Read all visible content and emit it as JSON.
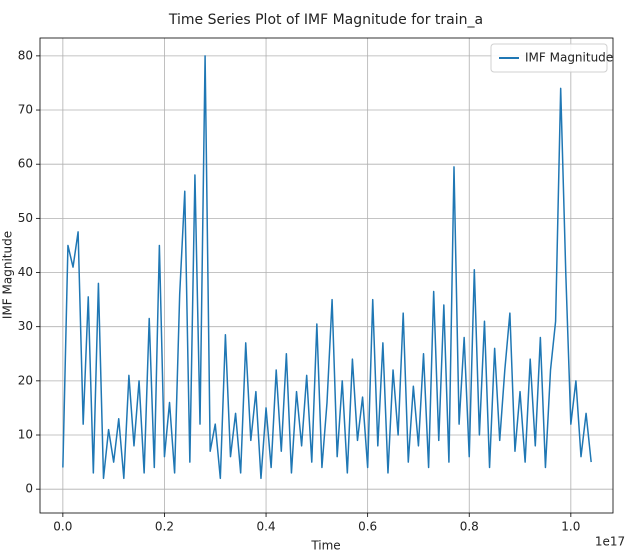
{
  "chart_data": {
    "type": "line",
    "title": "Time Series Plot of IMF Magnitude for train_a",
    "x_label": "Time",
    "y_label": "IMF Magnitude",
    "x_offset_label": "1e17",
    "x": [
      0,
      0.01,
      0.02,
      0.03,
      0.04,
      0.05,
      0.06,
      0.07,
      0.08,
      0.09,
      0.1,
      0.11,
      0.12,
      0.13,
      0.14,
      0.15,
      0.16,
      0.17,
      0.18,
      0.19,
      0.2,
      0.21,
      0.22,
      0.23,
      0.24,
      0.25,
      0.26,
      0.27,
      0.28,
      0.29,
      0.3,
      0.31,
      0.32,
      0.33,
      0.34,
      0.35,
      0.36,
      0.37,
      0.38,
      0.39,
      0.4,
      0.41,
      0.42,
      0.43,
      0.44,
      0.45,
      0.46,
      0.47,
      0.48,
      0.49,
      0.5,
      0.51,
      0.52,
      0.53,
      0.54,
      0.55,
      0.56,
      0.57,
      0.58,
      0.59,
      0.6,
      0.61,
      0.62,
      0.63,
      0.64,
      0.65,
      0.66,
      0.67,
      0.68,
      0.69,
      0.7,
      0.71,
      0.72,
      0.73,
      0.74,
      0.75,
      0.76,
      0.77,
      0.78,
      0.79,
      0.8,
      0.81,
      0.82,
      0.83,
      0.84,
      0.85,
      0.86,
      0.87,
      0.88,
      0.89,
      0.9,
      0.91,
      0.92,
      0.93,
      0.94,
      0.95,
      0.96,
      0.97,
      0.98,
      0.99,
      1,
      1.01,
      1.02,
      1.03,
      1.04
    ],
    "series": [
      {
        "name": "IMF Magnitude",
        "color": "#1f77b4",
        "values": [
          4,
          45,
          41,
          47.5,
          12,
          35.5,
          3,
          38,
          2,
          11,
          5,
          13,
          2,
          21,
          8,
          20,
          3,
          31.5,
          4,
          45,
          6,
          16,
          3,
          36,
          55,
          5,
          58,
          12,
          80,
          7,
          12,
          2,
          28.5,
          6,
          14,
          3,
          27,
          9,
          18,
          2,
          15,
          4,
          22,
          7,
          25,
          3,
          18,
          8,
          21,
          5,
          30.5,
          4,
          16,
          35,
          6,
          20,
          3,
          24,
          9,
          17,
          4,
          35,
          8,
          27,
          3,
          22,
          10,
          32.5,
          5,
          19,
          8,
          25,
          4,
          36.5,
          9,
          34,
          5,
          59.5,
          12,
          28,
          6,
          40.5,
          10,
          31,
          4,
          26,
          9,
          22,
          32.5,
          7,
          18,
          5,
          24,
          8,
          28,
          4,
          22,
          31,
          74,
          40,
          12,
          20,
          6,
          14,
          5
        ]
      }
    ],
    "xlim": [
      -0.045,
      1.083
    ],
    "ylim": [
      -4.4,
      83.3
    ],
    "xticks": [
      {
        "value": 0,
        "label": "0.0"
      },
      0.2,
      0.4,
      0.6,
      0.8,
      {
        "value": 1,
        "label": "1.0"
      }
    ],
    "yticks": [
      0,
      10,
      20,
      30,
      40,
      50,
      60,
      70,
      80
    ],
    "grid": true,
    "legend": "upper right"
  }
}
